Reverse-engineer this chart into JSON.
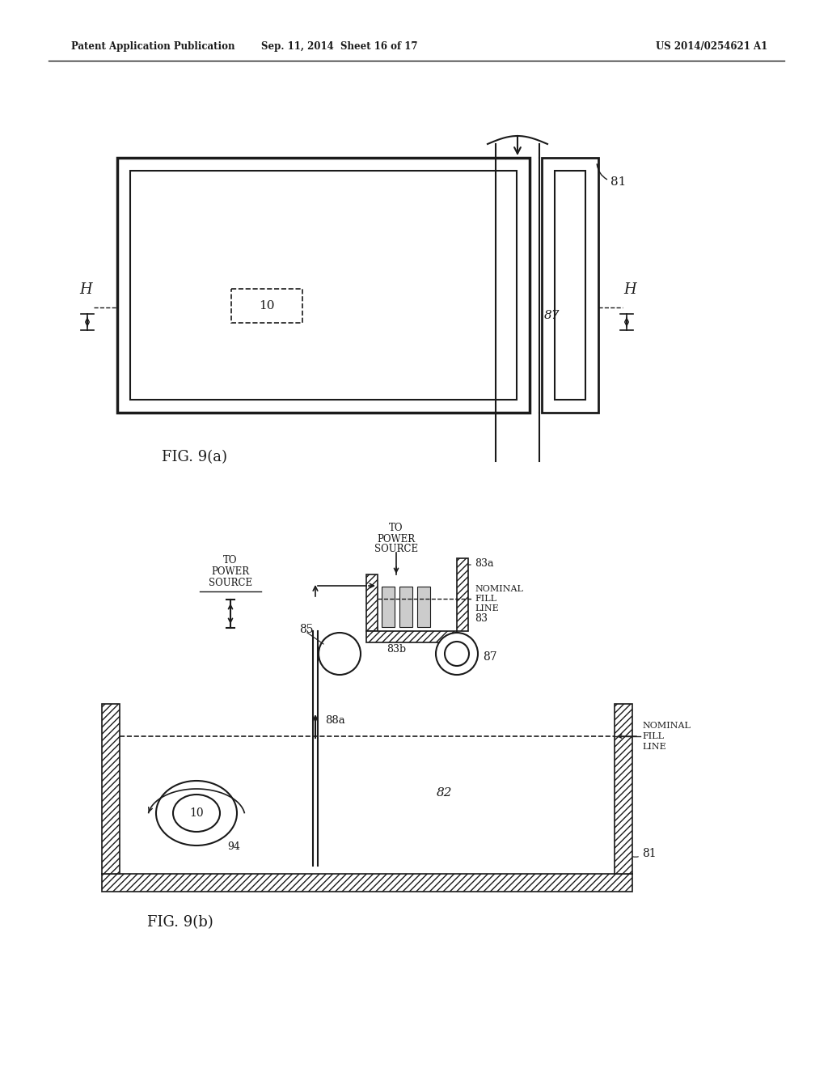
{
  "header_left": "Patent Application Publication",
  "header_mid": "Sep. 11, 2014  Sheet 16 of 17",
  "header_right": "US 2014/0254621 A1",
  "fig_a_caption": "FIG. 9(a)",
  "fig_b_caption": "FIG. 9(b)",
  "bg_color": "#ffffff",
  "line_color": "#1a1a1a"
}
